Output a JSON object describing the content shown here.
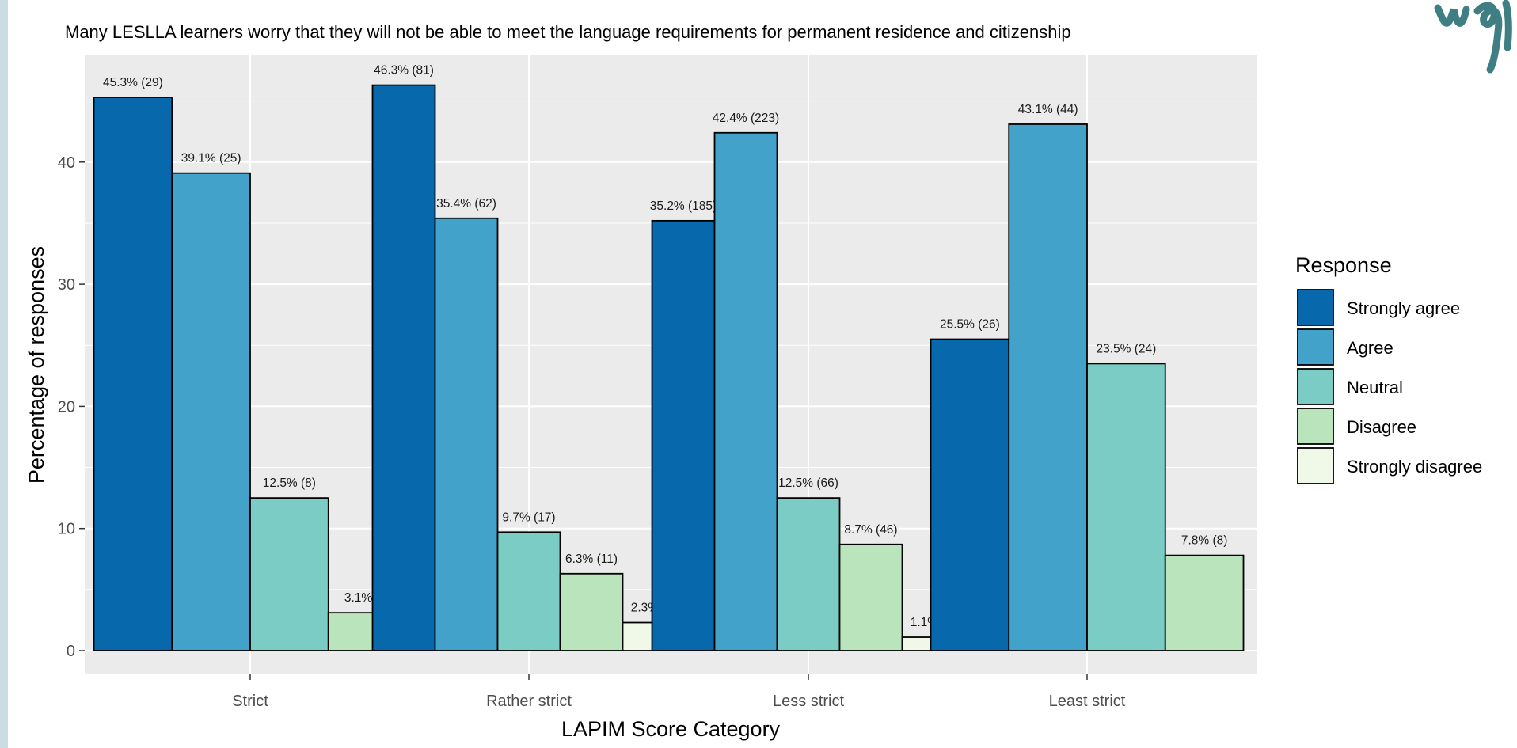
{
  "chart_data": {
    "type": "bar",
    "title": "Many LESLLA learners worry that they will not be able to meet the language requirements for permanent residence and citizenship",
    "xlabel": "LAPIM Score Category",
    "ylabel": "Percentage of responses",
    "ylim": [
      0,
      47
    ],
    "yticks": [
      0,
      10,
      20,
      30,
      40
    ],
    "grid": true,
    "legend_title": "Response",
    "legend_position": "right",
    "categories": [
      "Strict",
      "Rather strict",
      "Less strict",
      "Least strict"
    ],
    "series": [
      {
        "name": "Strongly agree",
        "color": "#0868ac",
        "values": [
          45.3,
          46.3,
          35.2,
          25.5
        ],
        "labels": [
          "45.3% (29)",
          "46.3% (81)",
          "35.2% (185)",
          "25.5% (26)"
        ]
      },
      {
        "name": "Agree",
        "color": "#43a2ca",
        "values": [
          39.1,
          35.4,
          42.4,
          43.1
        ],
        "labels": [
          "39.1% (25)",
          "35.4% (62)",
          "42.4% (223)",
          "43.1% (44)"
        ]
      },
      {
        "name": "Neutral",
        "color": "#7bccc4",
        "values": [
          12.5,
          9.7,
          12.5,
          23.5
        ],
        "labels": [
          "12.5% (8)",
          "9.7% (17)",
          "12.5% (66)",
          "23.5% (24)"
        ]
      },
      {
        "name": "Disagree",
        "color": "#bae4bc",
        "values": [
          3.1,
          6.3,
          8.7,
          7.8
        ],
        "labels": [
          "3.1% (2)",
          "6.3% (11)",
          "8.7% (46)",
          "7.8% (8)"
        ]
      },
      {
        "name": "Strongly disagree",
        "color": "#f0f9e8",
        "values": [
          null,
          2.3,
          1.1,
          null
        ],
        "labels": [
          null,
          "2.3% (4)",
          "1.1% (6)",
          null
        ]
      }
    ]
  },
  "colors": {
    "panel_background": "#ebebeb",
    "grid": "#ffffff",
    "bar_outline": "#000000",
    "page_border": "#c9dde2",
    "corner_script": "#3f7f83"
  }
}
